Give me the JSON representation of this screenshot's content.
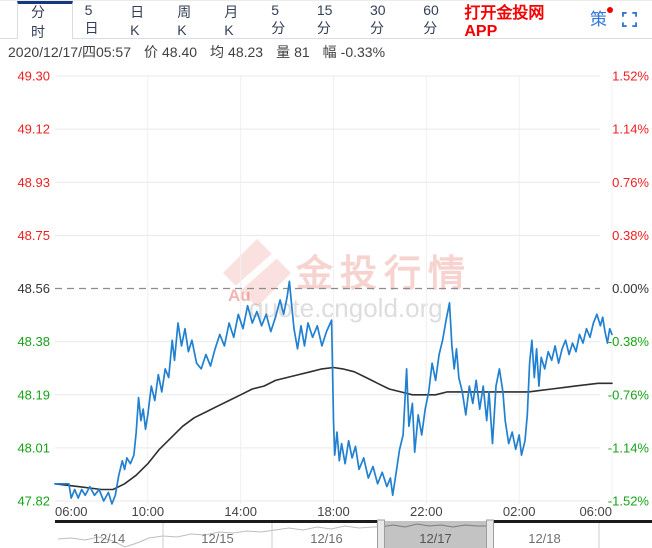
{
  "tabs": {
    "items": [
      "分时",
      "5日",
      "日K",
      "周K",
      "月K",
      "5分",
      "15分",
      "30分",
      "60分"
    ],
    "active": "分时",
    "app_link": "打开金投网APP",
    "strategy_label": "策"
  },
  "info": {
    "datetime": "2020/12/17/四05:57",
    "price_label": "价",
    "price": "48.40",
    "avg_label": "均",
    "avg": "48.23",
    "volume_label": "量",
    "volume": "81",
    "change_label": "幅",
    "change": "-0.33%"
  },
  "watermark": {
    "logo_text": "Au",
    "brand": "金投行情",
    "url": "quote.cngold.org"
  },
  "colors": {
    "up": "#ef2020",
    "down": "#17a317",
    "baseline_label": "#333333",
    "price_line": "#2181d0",
    "avg_line": "#2f2f2f",
    "grid": "#e9e9e9",
    "grid_vertical": "#f0f0f0",
    "dashed_line": "#8c8c8c",
    "time_label": "#444444",
    "navigator_bar": "#1b1b1b",
    "navigator_selected": "#c3c3c3",
    "link_blue": "#3477d6",
    "app_red": "#f50000"
  },
  "chart_data": {
    "type": "line",
    "x_ticks": [
      "06:00",
      "10:00",
      "14:00",
      "18:00",
      "22:00",
      "02:00",
      "06:00"
    ],
    "y_left_labels": [
      "49.30",
      "49.12",
      "48.93",
      "48.75",
      "48.56",
      "48.38",
      "48.19",
      "48.01",
      "47.82"
    ],
    "y_right_labels": [
      "1.52%",
      "1.14%",
      "0.76%",
      "0.38%",
      "0.00%",
      "-0.38%",
      "-0.76%",
      "-1.14%",
      "-1.52%"
    ],
    "y_min": 47.82,
    "y_max": 49.3,
    "baseline": 48.56,
    "baseline_index": 4,
    "x_unit": "hours since 06:00",
    "x_range": [
      0,
      24
    ],
    "grid": true,
    "series": [
      {
        "name": "price",
        "color": "#2181d0",
        "points": [
          [
            0,
            47.88
          ],
          [
            0.45,
            47.88
          ],
          [
            0.6,
            47.88
          ],
          [
            0.7,
            47.83
          ],
          [
            0.85,
            47.86
          ],
          [
            1.0,
            47.83
          ],
          [
            1.15,
            47.86
          ],
          [
            1.3,
            47.84
          ],
          [
            1.5,
            47.87
          ],
          [
            1.7,
            47.84
          ],
          [
            1.9,
            47.86
          ],
          [
            2.1,
            47.82
          ],
          [
            2.3,
            47.85
          ],
          [
            2.45,
            47.81
          ],
          [
            2.6,
            47.84
          ],
          [
            2.75,
            47.91
          ],
          [
            2.9,
            47.96
          ],
          [
            3.0,
            47.93
          ],
          [
            3.1,
            47.97
          ],
          [
            3.25,
            47.95
          ],
          [
            3.4,
            47.98
          ],
          [
            3.5,
            48.06
          ],
          [
            3.6,
            48.18
          ],
          [
            3.7,
            48.1
          ],
          [
            3.8,
            48.14
          ],
          [
            3.9,
            48.07
          ],
          [
            4.0,
            48.12
          ],
          [
            4.15,
            48.22
          ],
          [
            4.3,
            48.17
          ],
          [
            4.45,
            48.26
          ],
          [
            4.6,
            48.2
          ],
          [
            4.75,
            48.28
          ],
          [
            4.9,
            48.25
          ],
          [
            5.05,
            48.38
          ],
          [
            5.15,
            48.31
          ],
          [
            5.3,
            48.44
          ],
          [
            5.45,
            48.36
          ],
          [
            5.6,
            48.42
          ],
          [
            5.75,
            48.34
          ],
          [
            5.9,
            48.38
          ],
          [
            6.1,
            48.3
          ],
          [
            6.3,
            48.28
          ],
          [
            6.5,
            48.33
          ],
          [
            6.7,
            48.29
          ],
          [
            6.9,
            48.35
          ],
          [
            7.1,
            48.4
          ],
          [
            7.3,
            48.36
          ],
          [
            7.5,
            48.44
          ],
          [
            7.7,
            48.39
          ],
          [
            7.9,
            48.47
          ],
          [
            8.1,
            48.42
          ],
          [
            8.3,
            48.5
          ],
          [
            8.5,
            48.44
          ],
          [
            8.7,
            48.48
          ],
          [
            8.9,
            48.43
          ],
          [
            9.1,
            48.47
          ],
          [
            9.3,
            48.41
          ],
          [
            9.5,
            48.46
          ],
          [
            9.7,
            48.52
          ],
          [
            9.85,
            48.47
          ],
          [
            10.0,
            48.53
          ],
          [
            10.1,
            48.585
          ],
          [
            10.2,
            48.5
          ],
          [
            10.3,
            48.42
          ],
          [
            10.45,
            48.35
          ],
          [
            10.6,
            48.43
          ],
          [
            10.75,
            48.36
          ],
          [
            10.9,
            48.44
          ],
          [
            11.1,
            48.39
          ],
          [
            11.3,
            48.43
          ],
          [
            11.5,
            48.36
          ],
          [
            11.7,
            48.41
          ],
          [
            11.92,
            48.45
          ],
          [
            12.0,
            48.1
          ],
          [
            12.05,
            47.98
          ],
          [
            12.15,
            48.06
          ],
          [
            12.25,
            47.96
          ],
          [
            12.35,
            48.02
          ],
          [
            12.5,
            47.95
          ],
          [
            12.65,
            48.03
          ],
          [
            12.8,
            47.97
          ],
          [
            12.95,
            48.01
          ],
          [
            13.1,
            47.93
          ],
          [
            13.3,
            47.97
          ],
          [
            13.5,
            47.9
          ],
          [
            13.7,
            47.94
          ],
          [
            13.9,
            47.88
          ],
          [
            14.1,
            47.92
          ],
          [
            14.3,
            47.87
          ],
          [
            14.45,
            47.9
          ],
          [
            14.55,
            47.84
          ],
          [
            14.7,
            47.92
          ],
          [
            14.85,
            48.0
          ],
          [
            15.0,
            48.05
          ],
          [
            15.15,
            48.28
          ],
          [
            15.25,
            48.08
          ],
          [
            15.4,
            48.16
          ],
          [
            15.5,
            47.99
          ],
          [
            15.65,
            48.12
          ],
          [
            15.8,
            48.05
          ],
          [
            15.95,
            48.14
          ],
          [
            16.1,
            48.2
          ],
          [
            16.25,
            48.3
          ],
          [
            16.4,
            48.24
          ],
          [
            16.55,
            48.33
          ],
          [
            16.7,
            48.38
          ],
          [
            16.85,
            48.45
          ],
          [
            17.0,
            48.51
          ],
          [
            17.1,
            48.36
          ],
          [
            17.2,
            48.28
          ],
          [
            17.3,
            48.35
          ],
          [
            17.4,
            48.25
          ],
          [
            17.55,
            48.2
          ],
          [
            17.7,
            48.12
          ],
          [
            17.85,
            48.22
          ],
          [
            18.0,
            48.16
          ],
          [
            18.15,
            48.24
          ],
          [
            18.3,
            48.14
          ],
          [
            18.45,
            48.22
          ],
          [
            18.6,
            48.1
          ],
          [
            18.7,
            48.2
          ],
          [
            18.85,
            48.02
          ],
          [
            19.0,
            48.22
          ],
          [
            19.15,
            48.28
          ],
          [
            19.3,
            48.2
          ],
          [
            19.4,
            48.1
          ],
          [
            19.55,
            48.02
          ],
          [
            19.7,
            48.06
          ],
          [
            19.85,
            48.0
          ],
          [
            20.0,
            48.05
          ],
          [
            20.1,
            47.98
          ],
          [
            20.25,
            48.03
          ],
          [
            20.35,
            48.12
          ],
          [
            20.45,
            48.3
          ],
          [
            20.55,
            48.38
          ],
          [
            20.65,
            48.25
          ],
          [
            20.75,
            48.35
          ],
          [
            20.85,
            48.22
          ],
          [
            20.95,
            48.32
          ],
          [
            21.1,
            48.28
          ],
          [
            21.25,
            48.34
          ],
          [
            21.4,
            48.31
          ],
          [
            21.55,
            48.36
          ],
          [
            21.7,
            48.3
          ],
          [
            21.85,
            48.35
          ],
          [
            22.0,
            48.38
          ],
          [
            22.15,
            48.33
          ],
          [
            22.3,
            48.37
          ],
          [
            22.45,
            48.34
          ],
          [
            22.6,
            48.4
          ],
          [
            22.75,
            48.37
          ],
          [
            22.9,
            48.42
          ],
          [
            23.05,
            48.39
          ],
          [
            23.2,
            48.44
          ],
          [
            23.35,
            48.47
          ],
          [
            23.5,
            48.43
          ],
          [
            23.6,
            48.46
          ],
          [
            23.7,
            48.41
          ],
          [
            23.8,
            48.37
          ],
          [
            23.9,
            48.42
          ],
          [
            24,
            48.4
          ]
        ]
      },
      {
        "name": "average",
        "color": "#2f2f2f",
        "points": [
          [
            0,
            47.88
          ],
          [
            1,
            47.87
          ],
          [
            2,
            47.86
          ],
          [
            2.5,
            47.86
          ],
          [
            3,
            47.88
          ],
          [
            3.5,
            47.91
          ],
          [
            4,
            47.95
          ],
          [
            4.5,
            48.0
          ],
          [
            5,
            48.04
          ],
          [
            5.5,
            48.08
          ],
          [
            6,
            48.11
          ],
          [
            6.5,
            48.13
          ],
          [
            7,
            48.15
          ],
          [
            7.5,
            48.17
          ],
          [
            8,
            48.19
          ],
          [
            8.5,
            48.21
          ],
          [
            9,
            48.22
          ],
          [
            9.5,
            48.24
          ],
          [
            10,
            48.25
          ],
          [
            10.5,
            48.26
          ],
          [
            11,
            48.27
          ],
          [
            11.5,
            48.28
          ],
          [
            12,
            48.285
          ],
          [
            12.4,
            48.28
          ],
          [
            12.9,
            48.27
          ],
          [
            13.4,
            48.25
          ],
          [
            13.9,
            48.23
          ],
          [
            14.4,
            48.21
          ],
          [
            14.9,
            48.2
          ],
          [
            15.4,
            48.19
          ],
          [
            15.9,
            48.19
          ],
          [
            16.4,
            48.19
          ],
          [
            16.9,
            48.2
          ],
          [
            17.4,
            48.2
          ],
          [
            17.9,
            48.2
          ],
          [
            18.4,
            48.2
          ],
          [
            18.9,
            48.2
          ],
          [
            19.4,
            48.2
          ],
          [
            19.9,
            48.2
          ],
          [
            20.4,
            48.2
          ],
          [
            20.9,
            48.205
          ],
          [
            21.4,
            48.21
          ],
          [
            21.9,
            48.215
          ],
          [
            22.4,
            48.22
          ],
          [
            22.9,
            48.225
          ],
          [
            23.4,
            48.23
          ],
          [
            24,
            48.23
          ]
        ]
      }
    ],
    "navigator": {
      "dates": [
        "12/14",
        "12/15",
        "12/16",
        "12/17",
        "12/18"
      ],
      "selected": "12/17",
      "sparkline": [
        [
          3,
          18
        ],
        [
          16,
          17
        ],
        [
          30,
          19
        ],
        [
          44,
          16
        ],
        [
          58,
          20
        ],
        [
          70,
          26
        ],
        [
          82,
          22
        ],
        [
          94,
          17
        ],
        [
          108,
          15
        ],
        [
          122,
          16
        ],
        [
          136,
          13
        ],
        [
          150,
          14
        ],
        [
          164,
          11
        ],
        [
          178,
          12
        ],
        [
          192,
          10
        ],
        [
          206,
          11
        ],
        [
          220,
          9
        ],
        [
          234,
          7
        ],
        [
          248,
          9
        ],
        [
          262,
          6
        ],
        [
          276,
          8
        ],
        [
          290,
          5
        ],
        [
          304,
          7
        ],
        [
          318,
          6
        ],
        [
          326,
          6
        ],
        [
          338,
          4
        ],
        [
          350,
          6
        ],
        [
          362,
          3
        ],
        [
          374,
          5
        ],
        [
          386,
          4
        ],
        [
          398,
          6
        ],
        [
          410,
          4
        ],
        [
          422,
          5
        ],
        [
          435,
          5
        ]
      ]
    }
  }
}
